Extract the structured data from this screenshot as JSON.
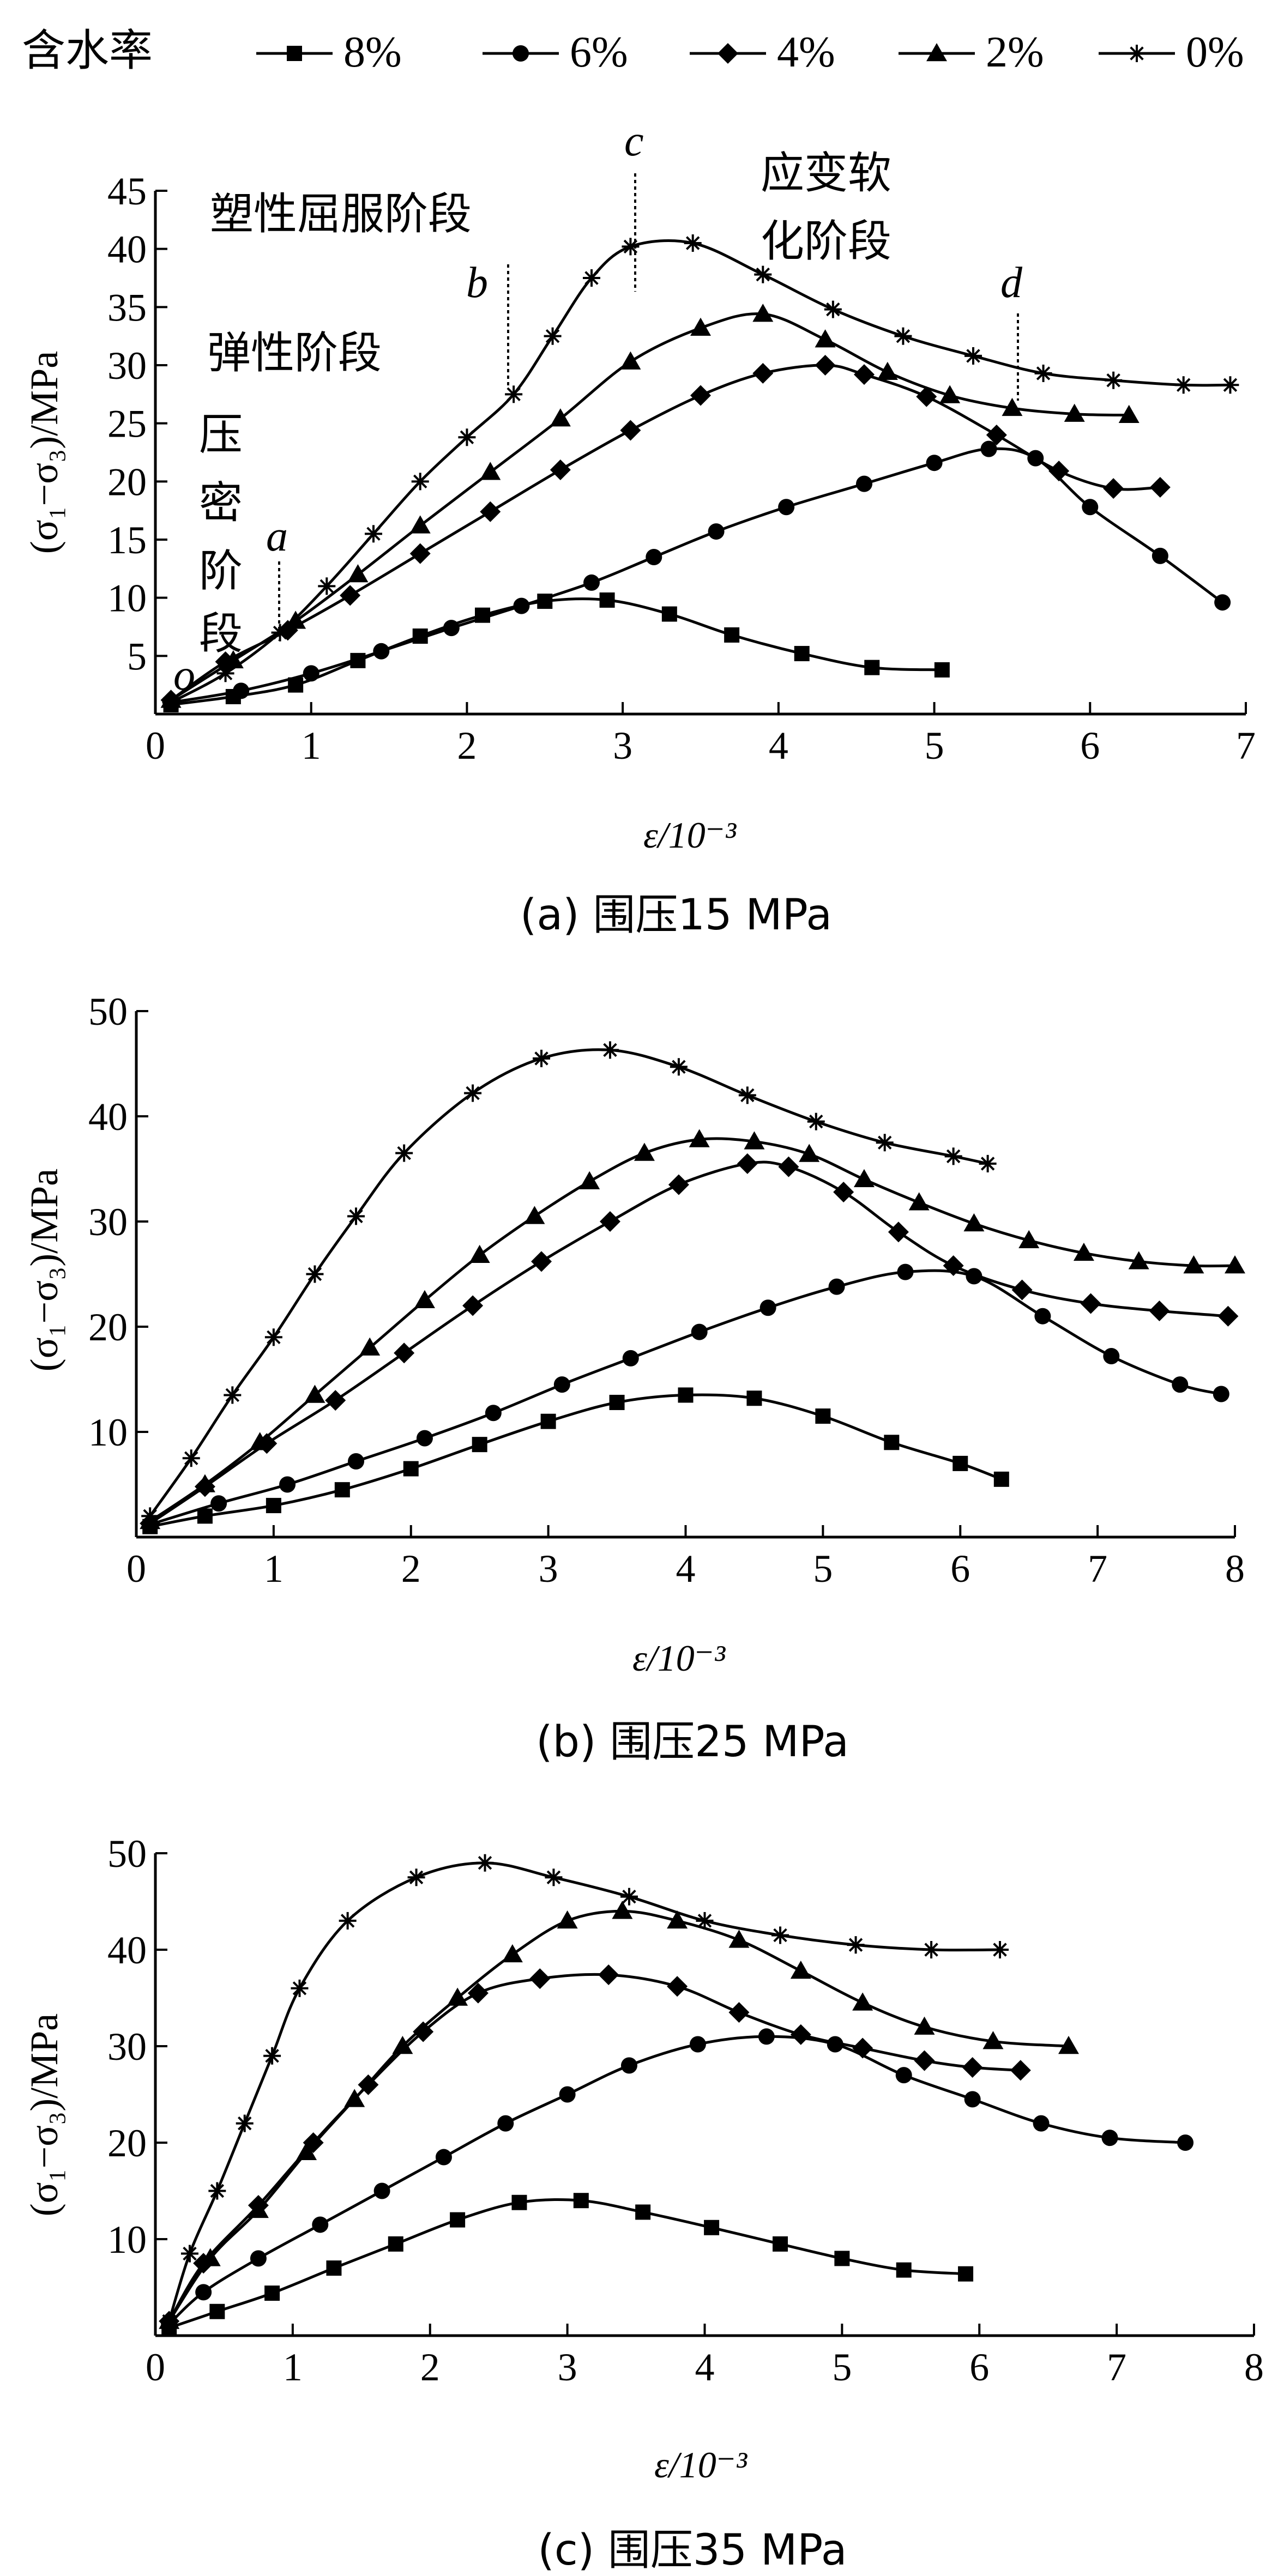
{
  "legend": {
    "title": "含水率",
    "items": [
      {
        "label": "8%",
        "marker": "square"
      },
      {
        "label": "6%",
        "marker": "circle"
      },
      {
        "label": "4%",
        "marker": "diamond"
      },
      {
        "label": "2%",
        "marker": "triangle"
      },
      {
        "label": "0%",
        "marker": "star"
      }
    ]
  },
  "panel_a": {
    "caption": "(a) 围压15 MPa",
    "xlabel": "ε/10⁻³",
    "ylabel": "(σ₁−σ₃)/MPa",
    "annotations": {
      "elastic": "弹性阶段",
      "plastic": "塑性屈服阶段",
      "softening_1": "应变软",
      "softening_2": "化阶段",
      "compaction_1": "压",
      "compaction_2": "密",
      "compaction_3": "阶",
      "compaction_4": "段",
      "point_o": "o",
      "point_a": "a",
      "point_b": "b",
      "point_c": "c",
      "point_d": "d"
    }
  },
  "panel_b": {
    "caption": "(b) 围压25 MPa",
    "xlabel": "ε/10⁻³",
    "ylabel": "(σ₁−σ₃)/MPa"
  },
  "panel_c": {
    "caption": "(c) 围压35 MPa",
    "xlabel": "ε/10⁻³",
    "ylabel": "(σ₁−σ₃)/MPa"
  },
  "chart_data": [
    {
      "type": "line",
      "title": "(a) 围压15 MPa",
      "xlabel": "ε/10⁻³",
      "ylabel": "(σ₁−σ₃)/MPa",
      "xlim": [
        0,
        7
      ],
      "ylim": [
        0,
        45
      ],
      "xticks": [
        0,
        1,
        2,
        3,
        4,
        5,
        6,
        7
      ],
      "yticks": [
        5,
        10,
        15,
        20,
        25,
        30,
        35,
        40,
        45
      ],
      "series": [
        {
          "name": "8%",
          "x": [
            0.1,
            0.5,
            0.9,
            1.3,
            1.7,
            2.1,
            2.5,
            2.9,
            3.3,
            3.7,
            4.15,
            4.6,
            5.05
          ],
          "y": [
            0.8,
            1.5,
            2.5,
            4.6,
            6.7,
            8.5,
            9.7,
            9.8,
            8.6,
            6.8,
            5.2,
            4.0,
            3.8
          ]
        },
        {
          "name": "6%",
          "x": [
            0.1,
            0.55,
            1.0,
            1.45,
            1.9,
            2.35,
            2.8,
            3.2,
            3.6,
            4.05,
            4.55,
            5.0,
            5.35,
            5.65,
            6.0,
            6.45,
            6.85
          ],
          "y": [
            1.0,
            2.0,
            3.5,
            5.4,
            7.4,
            9.3,
            11.3,
            13.5,
            15.7,
            17.8,
            19.8,
            21.6,
            22.8,
            22.0,
            17.8,
            13.6,
            9.6
          ]
        },
        {
          "name": "4%",
          "x": [
            0.1,
            0.45,
            0.85,
            1.25,
            1.7,
            2.15,
            2.6,
            3.05,
            3.5,
            3.9,
            4.3,
            4.55,
            4.95,
            5.4,
            5.8,
            6.15,
            6.45
          ],
          "y": [
            1.2,
            4.5,
            7.2,
            10.2,
            13.8,
            17.4,
            21.0,
            24.4,
            27.4,
            29.3,
            30.0,
            29.2,
            27.3,
            24.0,
            20.9,
            19.4,
            19.5
          ]
        },
        {
          "name": "2%",
          "x": [
            0.1,
            0.5,
            0.9,
            1.3,
            1.7,
            2.15,
            2.6,
            3.05,
            3.5,
            3.9,
            4.3,
            4.7,
            5.1,
            5.5,
            5.9,
            6.25
          ],
          "y": [
            1.2,
            4.6,
            8.0,
            12.0,
            16.2,
            20.8,
            25.4,
            30.3,
            33.2,
            34.4,
            32.2,
            29.4,
            27.4,
            26.3,
            25.8,
            25.7
          ]
        },
        {
          "name": "0%",
          "x": [
            0.1,
            0.45,
            0.8,
            1.1,
            1.4,
            1.7,
            2.0,
            2.3,
            2.55,
            2.8,
            3.05,
            3.45,
            3.9,
            4.35,
            4.8,
            5.25,
            5.7,
            6.15,
            6.6,
            6.9
          ],
          "y": [
            1.0,
            3.5,
            7.0,
            11.0,
            15.5,
            20.0,
            23.8,
            27.5,
            32.5,
            37.5,
            40.2,
            40.5,
            37.8,
            34.8,
            32.5,
            30.8,
            29.3,
            28.7,
            28.3,
            28.3
          ]
        }
      ]
    },
    {
      "type": "line",
      "title": "(b) 围压25 MPa",
      "xlabel": "ε/10⁻³",
      "ylabel": "(σ₁−σ₃)/MPa",
      "xlim": [
        0,
        8
      ],
      "ylim": [
        0,
        50
      ],
      "xticks": [
        0,
        1,
        2,
        3,
        4,
        5,
        6,
        7,
        8
      ],
      "yticks": [
        10,
        20,
        30,
        40,
        50
      ],
      "series": [
        {
          "name": "8%",
          "x": [
            0.1,
            0.5,
            1.0,
            1.5,
            2.0,
            2.5,
            3.0,
            3.5,
            4.0,
            4.5,
            5.0,
            5.5,
            6.0,
            6.3
          ],
          "y": [
            1.0,
            2.0,
            3.0,
            4.5,
            6.5,
            8.8,
            11.0,
            12.8,
            13.5,
            13.2,
            11.5,
            9.0,
            7.0,
            5.5
          ]
        },
        {
          "name": "6%",
          "x": [
            0.1,
            0.6,
            1.1,
            1.6,
            2.1,
            2.6,
            3.1,
            3.6,
            4.1,
            4.6,
            5.1,
            5.6,
            6.1,
            6.6,
            7.1,
            7.6,
            7.9
          ],
          "y": [
            1.2,
            3.2,
            5.0,
            7.2,
            9.4,
            11.8,
            14.5,
            17.0,
            19.5,
            21.8,
            23.8,
            25.2,
            24.8,
            21.0,
            17.2,
            14.5,
            13.6
          ]
        },
        {
          "name": "4%",
          "x": [
            0.1,
            0.5,
            0.95,
            1.45,
            1.95,
            2.45,
            2.95,
            3.45,
            3.95,
            4.45,
            4.75,
            5.15,
            5.55,
            5.95,
            6.45,
            6.95,
            7.45,
            7.95
          ],
          "y": [
            1.3,
            4.8,
            8.9,
            13.0,
            17.5,
            22.0,
            26.2,
            30.0,
            33.5,
            35.5,
            35.2,
            32.8,
            29.0,
            25.8,
            23.5,
            22.2,
            21.5,
            21.0
          ]
        },
        {
          "name": "2%",
          "x": [
            0.1,
            0.5,
            0.9,
            1.3,
            1.7,
            2.1,
            2.5,
            2.9,
            3.3,
            3.7,
            4.1,
            4.5,
            4.9,
            5.3,
            5.7,
            6.1,
            6.5,
            6.9,
            7.3,
            7.7,
            8.0
          ],
          "y": [
            1.5,
            5.0,
            9.0,
            13.5,
            18.0,
            22.5,
            26.8,
            30.5,
            33.8,
            36.5,
            37.8,
            37.6,
            36.4,
            34.0,
            31.8,
            29.8,
            28.2,
            27.0,
            26.2,
            25.8,
            25.8
          ]
        },
        {
          "name": "0%",
          "x": [
            0.1,
            0.4,
            0.7,
            1.0,
            1.3,
            1.6,
            1.95,
            2.45,
            2.95,
            3.45,
            3.95,
            4.45,
            4.95,
            5.45,
            5.95,
            6.2
          ],
          "y": [
            2.0,
            7.5,
            13.5,
            19.0,
            25.0,
            30.5,
            36.5,
            42.2,
            45.5,
            46.3,
            44.7,
            42.0,
            39.5,
            37.5,
            36.2,
            35.5
          ]
        }
      ]
    },
    {
      "type": "line",
      "title": "(c) 围压35 MPa",
      "xlabel": "ε/10⁻³",
      "ylabel": "(σ₁−σ₃)/MPa",
      "xlim": [
        0,
        8
      ],
      "ylim": [
        0,
        50
      ],
      "xticks": [
        0,
        1,
        2,
        3,
        4,
        5,
        6,
        7,
        8
      ],
      "yticks": [
        10,
        20,
        30,
        40,
        50
      ],
      "series": [
        {
          "name": "8%",
          "x": [
            0.1,
            0.45,
            0.85,
            1.3,
            1.75,
            2.2,
            2.65,
            3.1,
            3.55,
            4.05,
            4.55,
            5.0,
            5.45,
            5.9
          ],
          "y": [
            0.8,
            2.5,
            4.4,
            7.0,
            9.5,
            12.0,
            13.8,
            14.0,
            12.8,
            11.2,
            9.5,
            8.0,
            6.8,
            6.4
          ]
        },
        {
          "name": "6%",
          "x": [
            0.1,
            0.35,
            0.75,
            1.2,
            1.65,
            2.1,
            2.55,
            3.0,
            3.45,
            3.95,
            4.45,
            4.95,
            5.45,
            5.95,
            6.45,
            6.95,
            7.5
          ],
          "y": [
            1.2,
            4.5,
            8.0,
            11.5,
            15.0,
            18.5,
            22.0,
            25.0,
            28.0,
            30.2,
            31.0,
            30.2,
            27.0,
            24.5,
            22.0,
            20.5,
            20.0
          ]
        },
        {
          "name": "4%",
          "x": [
            0.1,
            0.35,
            0.75,
            1.15,
            1.55,
            1.95,
            2.35,
            2.8,
            3.3,
            3.8,
            4.25,
            4.7,
            5.15,
            5.6,
            5.95,
            6.3
          ],
          "y": [
            1.5,
            7.5,
            13.5,
            20.0,
            26.0,
            31.5,
            35.5,
            37.0,
            37.4,
            36.2,
            33.5,
            31.2,
            29.8,
            28.5,
            27.8,
            27.5
          ]
        },
        {
          "name": "2%",
          "x": [
            0.1,
            0.4,
            0.75,
            1.1,
            1.45,
            1.8,
            2.2,
            2.6,
            3.0,
            3.4,
            3.8,
            4.25,
            4.7,
            5.15,
            5.6,
            6.1,
            6.65
          ],
          "y": [
            1.5,
            8.0,
            13.0,
            19.0,
            24.5,
            30.0,
            35.0,
            39.5,
            43.0,
            44.0,
            43.0,
            41.0,
            37.8,
            34.5,
            32.0,
            30.5,
            30.0
          ]
        },
        {
          "name": "0%",
          "x": [
            0.1,
            0.25,
            0.45,
            0.65,
            0.85,
            1.05,
            1.4,
            1.9,
            2.4,
            2.9,
            3.45,
            4.0,
            4.55,
            5.1,
            5.65,
            6.15
          ],
          "y": [
            1.5,
            8.5,
            15.0,
            22.0,
            29.0,
            36.0,
            43.0,
            47.5,
            49.0,
            47.5,
            45.5,
            43.0,
            41.5,
            40.5,
            40.0,
            40.0
          ]
        }
      ]
    }
  ]
}
